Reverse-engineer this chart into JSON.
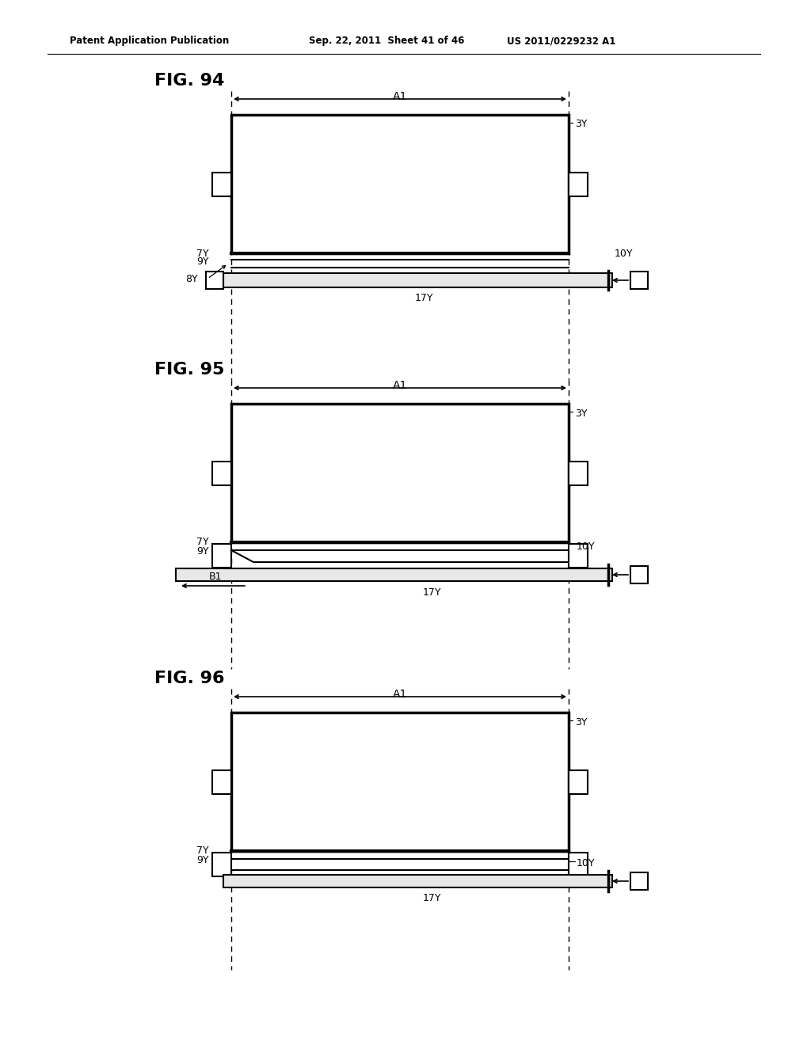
{
  "bg_color": "#ffffff",
  "header_text1": "Patent Application Publication",
  "header_text2": "Sep. 22, 2011  Sheet 41 of 46",
  "header_text3": "US 2011/0229232 A1",
  "fig94_label": "FIG. 94",
  "fig95_label": "FIG. 95",
  "fig96_label": "FIG. 96",
  "line_color": "#000000",
  "lw": 1.5,
  "thick_lw": 2.5
}
